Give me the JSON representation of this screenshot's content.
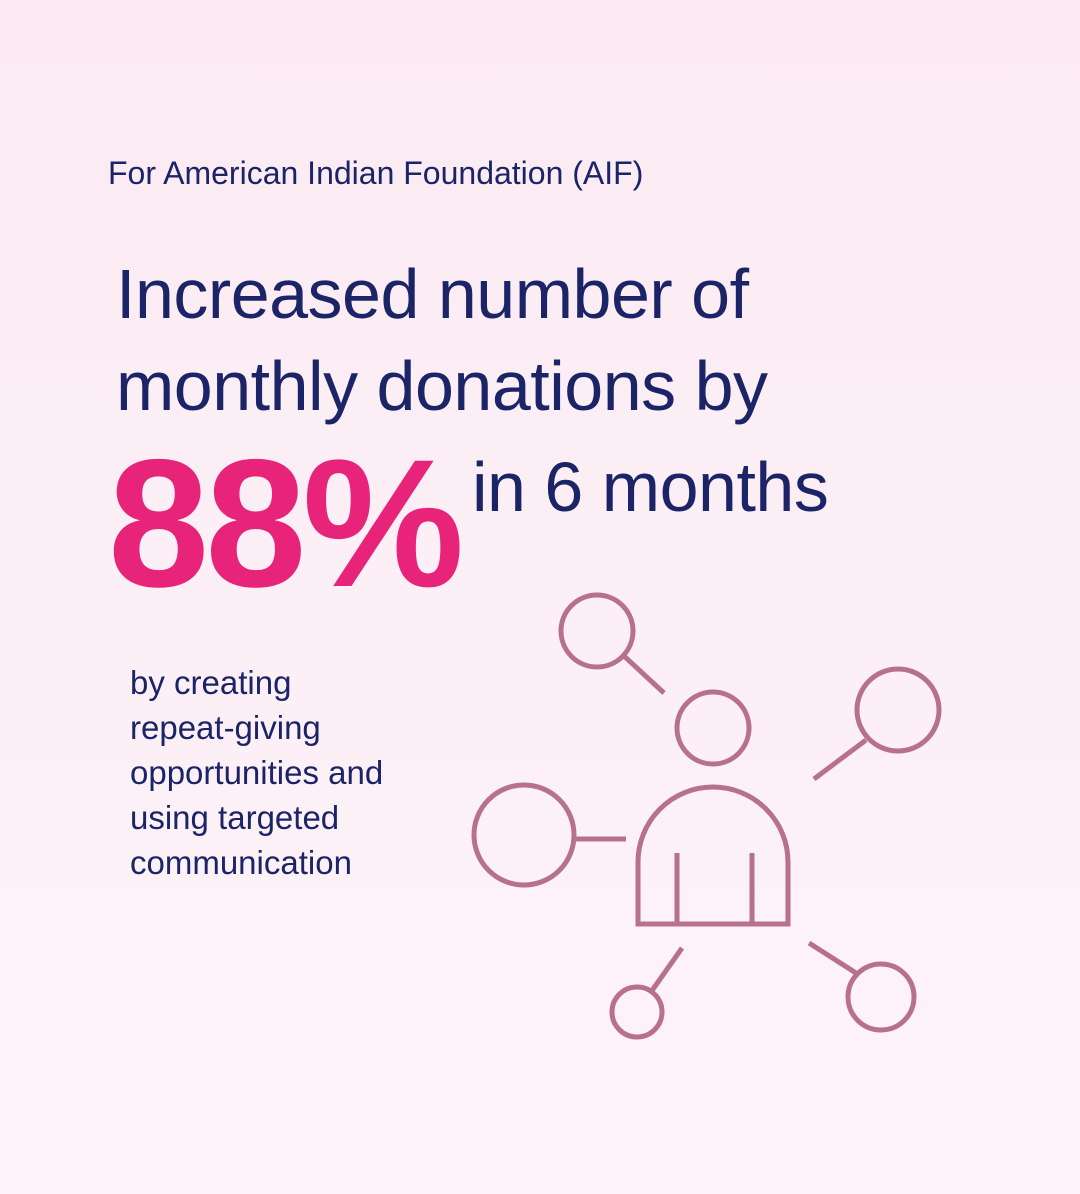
{
  "subtitle": "For American Indian Foundation (AIF)",
  "headline": {
    "line1": "Increased number of",
    "line2": "monthly donations by"
  },
  "stat": {
    "value": "88%",
    "suffix": "in 6 months"
  },
  "description": {
    "lines": [
      "by creating",
      "repeat-giving",
      "opportunities and",
      "using targeted",
      "communication"
    ]
  },
  "colors": {
    "background": "#fcf0f6",
    "text": "#1b2466",
    "accent": "#e7237a",
    "icon": "#b8708f"
  },
  "icon": "user-network-icon"
}
